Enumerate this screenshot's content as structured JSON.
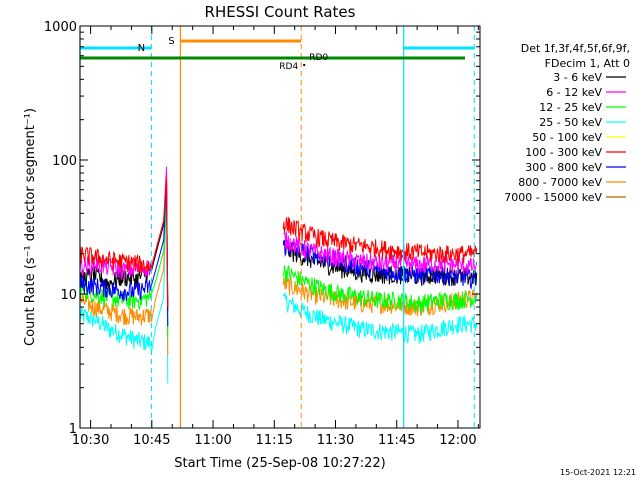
{
  "chart_data": {
    "type": "line",
    "title": "RHESSI Count Rates",
    "xlabel": "Start Time (25-Sep-08 10:27:22)",
    "ylabel": "Count Rate (s⁻¹ detector segment⁻¹)",
    "y_scale": "log",
    "ylim": [
      1,
      1000
    ],
    "xlim_minutes_after_10:27:22": [
      0,
      98
    ],
    "x_ticks": [
      {
        "label": "10:30",
        "t": 2.6
      },
      {
        "label": "10:45",
        "t": 17.6
      },
      {
        "label": "11:00",
        "t": 32.6
      },
      {
        "label": "11:15",
        "t": 47.6
      },
      {
        "label": "11:30",
        "t": 62.6
      },
      {
        "label": "11:45",
        "t": 77.6
      },
      {
        "label": "12:00",
        "t": 92.6
      }
    ],
    "y_ticks": [
      {
        "label": "1",
        "v": 1
      },
      {
        "label": "10",
        "v": 10
      },
      {
        "label": "100",
        "v": 100
      },
      {
        "label": "1000",
        "v": 1000
      }
    ],
    "legend_header": [
      "Det 1f,3f,4f,5f,6f,9f,",
      "FDecim 1, Att 0"
    ],
    "legend_position": "right",
    "series": [
      {
        "name": "3 - 6 keV",
        "color": "#000000",
        "before": [
          13,
          14,
          12,
          13.5,
          13,
          15
        ],
        "after": [
          22,
          19,
          17,
          15.5,
          14.5,
          14,
          14,
          13.5,
          14,
          13.5,
          13.5
        ]
      },
      {
        "name": "6 - 12 keV",
        "color": "#ff00ff",
        "before": [
          16,
          17,
          16,
          15,
          15.5,
          16
        ],
        "after": [
          26,
          22,
          20,
          18.5,
          17.5,
          17,
          17,
          16.5,
          17,
          16.5,
          16
        ]
      },
      {
        "name": "12 - 25 keV",
        "color": "#00ff00",
        "before": [
          11,
          10,
          9.5,
          9,
          9,
          9.5
        ],
        "after": [
          15,
          12.5,
          11,
          10,
          9.5,
          9,
          9,
          8.5,
          9,
          9,
          9.5
        ]
      },
      {
        "name": "25 - 50 keV",
        "color": "#00ffff",
        "before": [
          7,
          6.5,
          5.5,
          5,
          4.5,
          4.3
        ],
        "after": [
          9,
          7.5,
          6.5,
          6,
          5.5,
          5.3,
          5.2,
          5,
          5.5,
          6,
          6
        ]
      },
      {
        "name": "50 - 100 keV",
        "color": "#ffff00",
        "before": [],
        "after": []
      },
      {
        "name": "100 - 300 keV",
        "color": "#ff0000",
        "before": [
          20,
          19,
          18,
          17.5,
          17,
          16
        ],
        "after": [
          34,
          29,
          26,
          24,
          23,
          22,
          21,
          20.5,
          20,
          20,
          20
        ]
      },
      {
        "name": "300 - 800 keV",
        "color": "#0000ff",
        "before": [
          12,
          11.5,
          11,
          10.5,
          10.5,
          11.5
        ],
        "after": [
          23,
          21,
          19,
          17.5,
          16,
          15,
          14.5,
          14,
          14,
          13.5,
          13
        ]
      },
      {
        "name": "800 - 7000 keV",
        "color": "#ff8c00",
        "before": [
          9,
          8,
          7.5,
          7,
          6.8,
          7
        ],
        "after": [
          12,
          10.5,
          9.5,
          9,
          8.5,
          8.5,
          8.3,
          8,
          8.5,
          9,
          9.5
        ]
      },
      {
        "name": "7000 - 15000 keV",
        "color": "#aa6600",
        "before": [],
        "after": []
      }
    ],
    "data_segments_minutes": {
      "before": [
        0,
        17.5
      ],
      "after": [
        49.8,
        97.2
      ]
    },
    "spike": {
      "t": 21.2,
      "peak": 100
    },
    "annotations": [
      {
        "label": "N",
        "color": "#00e0ff",
        "kind": "night"
      },
      {
        "label": "S",
        "color": "#ff8c00",
        "kind": "saa"
      },
      {
        "label": "RD0",
        "color": "#008800"
      },
      {
        "label": "RD4",
        "color": "#008800"
      }
    ],
    "grid": false
  },
  "footer_timestamp": "15-Oct-2021 12:21"
}
